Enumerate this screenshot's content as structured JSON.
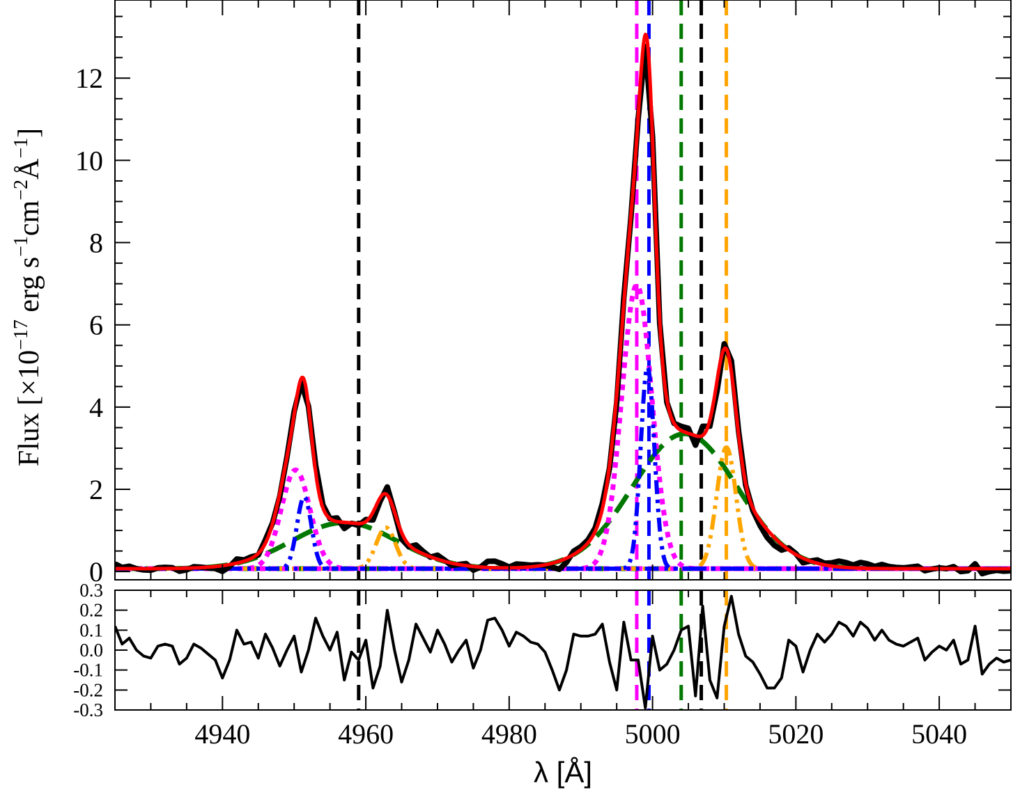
{
  "chart_data": [
    {
      "panel": "main",
      "type": "line",
      "xlim": [
        4925,
        5050
      ],
      "ylim": [
        -0.2,
        13.9
      ],
      "xlabel": "λ [Å]",
      "ylabel": {
        "text_pre": "Flux [×10",
        "exp1": "−17",
        "text_mid": " erg s",
        "exp2": "−1",
        "text_mid2": "cm",
        "exp3": "−2",
        "text_mid3": "Å",
        "exp4": "−1",
        "text_post": "]"
      },
      "xticks": [
        4940,
        4960,
        4980,
        5000,
        5020,
        5040
      ],
      "xtick_labels": [
        "4940",
        "4960",
        "4980",
        "5000",
        "5020",
        "5040"
      ],
      "yticks": [
        0,
        2,
        4,
        6,
        8,
        10,
        12
      ],
      "ytick_labels": [
        "0",
        "2",
        "4",
        "6",
        "8",
        "10",
        "12"
      ],
      "colors": {
        "observed": "#000000",
        "total_fit": "#ff0000",
        "magenta_component": "#ff00ff",
        "blue_component": "#0000ff",
        "green_component": "#007800",
        "orange_component": "#ffa500"
      },
      "vertical_lines": [
        {
          "x": 4959.0,
          "color": "#000000"
        },
        {
          "x": 4997.8,
          "color": "#ff00ff"
        },
        {
          "x": 4999.5,
          "color": "#0000ff"
        },
        {
          "x": 5004.0,
          "color": "#007800"
        },
        {
          "x": 5006.8,
          "color": "#000000"
        },
        {
          "x": 5010.3,
          "color": "#ffa500"
        }
      ],
      "components": {
        "magenta": [
          {
            "center": 4950.2,
            "amp": 2.4,
            "sigma": 2.0
          },
          {
            "center": 4997.8,
            "amp": 6.9,
            "sigma": 2.1
          }
        ],
        "blue": [
          {
            "center": 4951.4,
            "amp": 1.75,
            "sigma": 1.0
          },
          {
            "center": 4999.3,
            "amp": 4.9,
            "sigma": 0.95
          }
        ],
        "green": [
          {
            "center": 4957.0,
            "amp": 1.12,
            "sigma": 7.3
          },
          {
            "center": 5004.5,
            "amp": 3.28,
            "sigma": 7.3
          }
        ],
        "orange": [
          {
            "center": 4962.8,
            "amp": 1.0,
            "sigma": 1.35
          },
          {
            "center": 5010.3,
            "amp": 2.95,
            "sigma": 1.35
          }
        ],
        "baseline": 0.07
      }
    },
    {
      "panel": "residual",
      "type": "line",
      "xlim": [
        4925,
        5050
      ],
      "ylim": [
        -0.3,
        0.3
      ],
      "yticks": [
        0.3,
        0.2,
        0.1,
        0.0,
        -0.1,
        -0.2,
        -0.3
      ],
      "ytick_labels": [
        "0.3",
        "0.2",
        "0.1",
        "0.0",
        "-0.1",
        "-0.2",
        "-0.3"
      ],
      "x": [
        4925,
        4926,
        4927,
        4928,
        4929,
        4930,
        4931,
        4932,
        4933,
        4934,
        4935,
        4936,
        4937,
        4938,
        4939,
        4940,
        4941,
        4942,
        4943,
        4944,
        4945,
        4946,
        4947,
        4948,
        4949,
        4950,
        4951,
        4952,
        4953,
        4954,
        4955,
        4956,
        4957,
        4958,
        4959,
        4960,
        4961,
        4962,
        4963,
        4964,
        4965,
        4966,
        4967,
        4968,
        4969,
        4970,
        4971,
        4972,
        4973,
        4974,
        4975,
        4976,
        4977,
        4978,
        4979,
        4980,
        4981,
        4982,
        4983,
        4984,
        4985,
        4986,
        4987,
        4988,
        4989,
        4990,
        4991,
        4992,
        4993,
        4994,
        4995,
        4996,
        4997,
        4998,
        4999,
        5000,
        5001,
        5002,
        5003,
        5004,
        5005,
        5006,
        5007,
        5008,
        5009,
        5010,
        5011,
        5012,
        5013,
        5014,
        5015,
        5016,
        5017,
        5018,
        5019,
        5020,
        5021,
        5022,
        5023,
        5024,
        5025,
        5026,
        5027,
        5028,
        5029,
        5030,
        5031,
        5032,
        5033,
        5034,
        5035,
        5036,
        5037,
        5038,
        5039,
        5040,
        5041,
        5042,
        5043,
        5044,
        5045,
        5046,
        5047,
        5048,
        5049,
        5050
      ],
      "y": [
        0.12,
        0.03,
        0.06,
        0.0,
        -0.03,
        -0.04,
        0.02,
        0.03,
        0.02,
        -0.07,
        -0.04,
        0.03,
        0.01,
        -0.02,
        -0.05,
        -0.14,
        -0.05,
        0.1,
        0.03,
        0.04,
        -0.04,
        0.08,
        0.01,
        -0.08,
        0.0,
        0.07,
        -0.11,
        0.0,
        0.16,
        0.07,
        0.0,
        0.09,
        -0.15,
        -0.01,
        -0.05,
        0.05,
        -0.19,
        -0.08,
        0.2,
        0.0,
        -0.16,
        -0.05,
        0.13,
        0.06,
        -0.01,
        0.1,
        0.03,
        -0.06,
        0.0,
        0.05,
        -0.09,
        0.0,
        0.15,
        0.16,
        0.1,
        0.02,
        0.09,
        0.07,
        0.04,
        0.03,
        -0.01,
        -0.1,
        -0.2,
        -0.1,
        0.08,
        0.07,
        0.07,
        0.08,
        0.13,
        -0.06,
        -0.2,
        0.14,
        -0.05,
        -0.05,
        -0.29,
        0.07,
        -0.1,
        -0.07,
        0.0,
        0.1,
        0.12,
        -0.23,
        0.22,
        -0.15,
        -0.24,
        0.12,
        0.27,
        0.08,
        -0.03,
        -0.06,
        -0.12,
        -0.19,
        -0.19,
        -0.14,
        0.05,
        0.02,
        -0.11,
        0.0,
        0.08,
        0.04,
        0.08,
        0.14,
        0.12,
        0.07,
        0.14,
        0.11,
        0.05,
        0.1,
        0.05,
        0.03,
        0.02,
        0.04,
        0.06,
        -0.05,
        -0.01,
        0.02,
        0.0,
        0.05,
        -0.07,
        -0.05,
        0.12,
        -0.12,
        -0.07,
        -0.04,
        -0.06,
        -0.05
      ]
    }
  ]
}
